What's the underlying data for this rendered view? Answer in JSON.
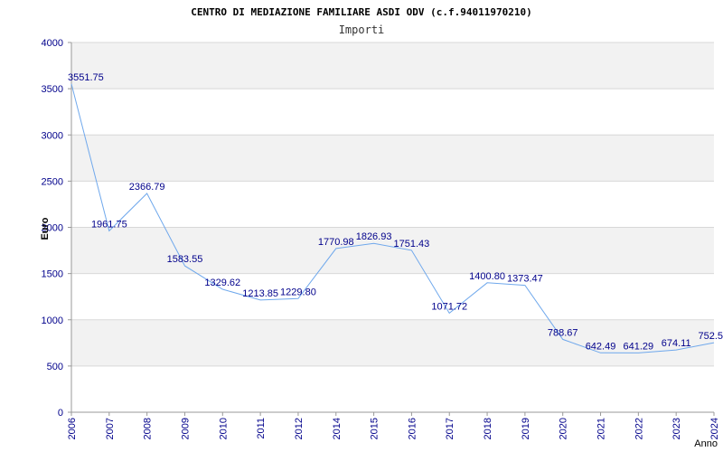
{
  "chart_data": {
    "type": "line",
    "title": "CENTRO DI MEDIAZIONE FAMILIARE ASDI ODV (c.f.94011970210)",
    "subtitle": "Importi",
    "xlabel": "Anno",
    "ylabel": "Euro",
    "ylim": [
      0,
      4000
    ],
    "yticks": [
      "0",
      "500",
      "1000",
      "1500",
      "2000",
      "2500",
      "3000",
      "3500",
      "4000"
    ],
    "categories": [
      "2006",
      "2007",
      "2008",
      "2009",
      "2010",
      "2011",
      "2012",
      "2014",
      "2015",
      "2016",
      "2017",
      "2018",
      "2019",
      "2020",
      "2021",
      "2022",
      "2023",
      "2024"
    ],
    "values": [
      3551.75,
      1961.75,
      2366.79,
      1583.55,
      1329.62,
      1213.85,
      1229.8,
      1770.98,
      1826.93,
      1751.43,
      1071.72,
      1400.8,
      1373.47,
      788.67,
      642.49,
      641.29,
      674.11,
      752.5
    ],
    "labels": [
      "3551.75",
      "1961.75",
      "2366.79",
      "1583.55",
      "1329.62",
      "1213.85",
      "1229.80",
      "1770.98",
      "1826.93",
      "1751.43",
      "1071.72",
      "1400.80",
      "1373.47",
      "788.67",
      "642.49",
      "641.29",
      "674.11",
      "752.5"
    ],
    "grid": true,
    "colors": {
      "line": "#6fa8ec",
      "axis_text": "#00008b",
      "band": "#f2f2f2",
      "gridline": "#d8d8d8",
      "title_text": "#000000"
    }
  }
}
